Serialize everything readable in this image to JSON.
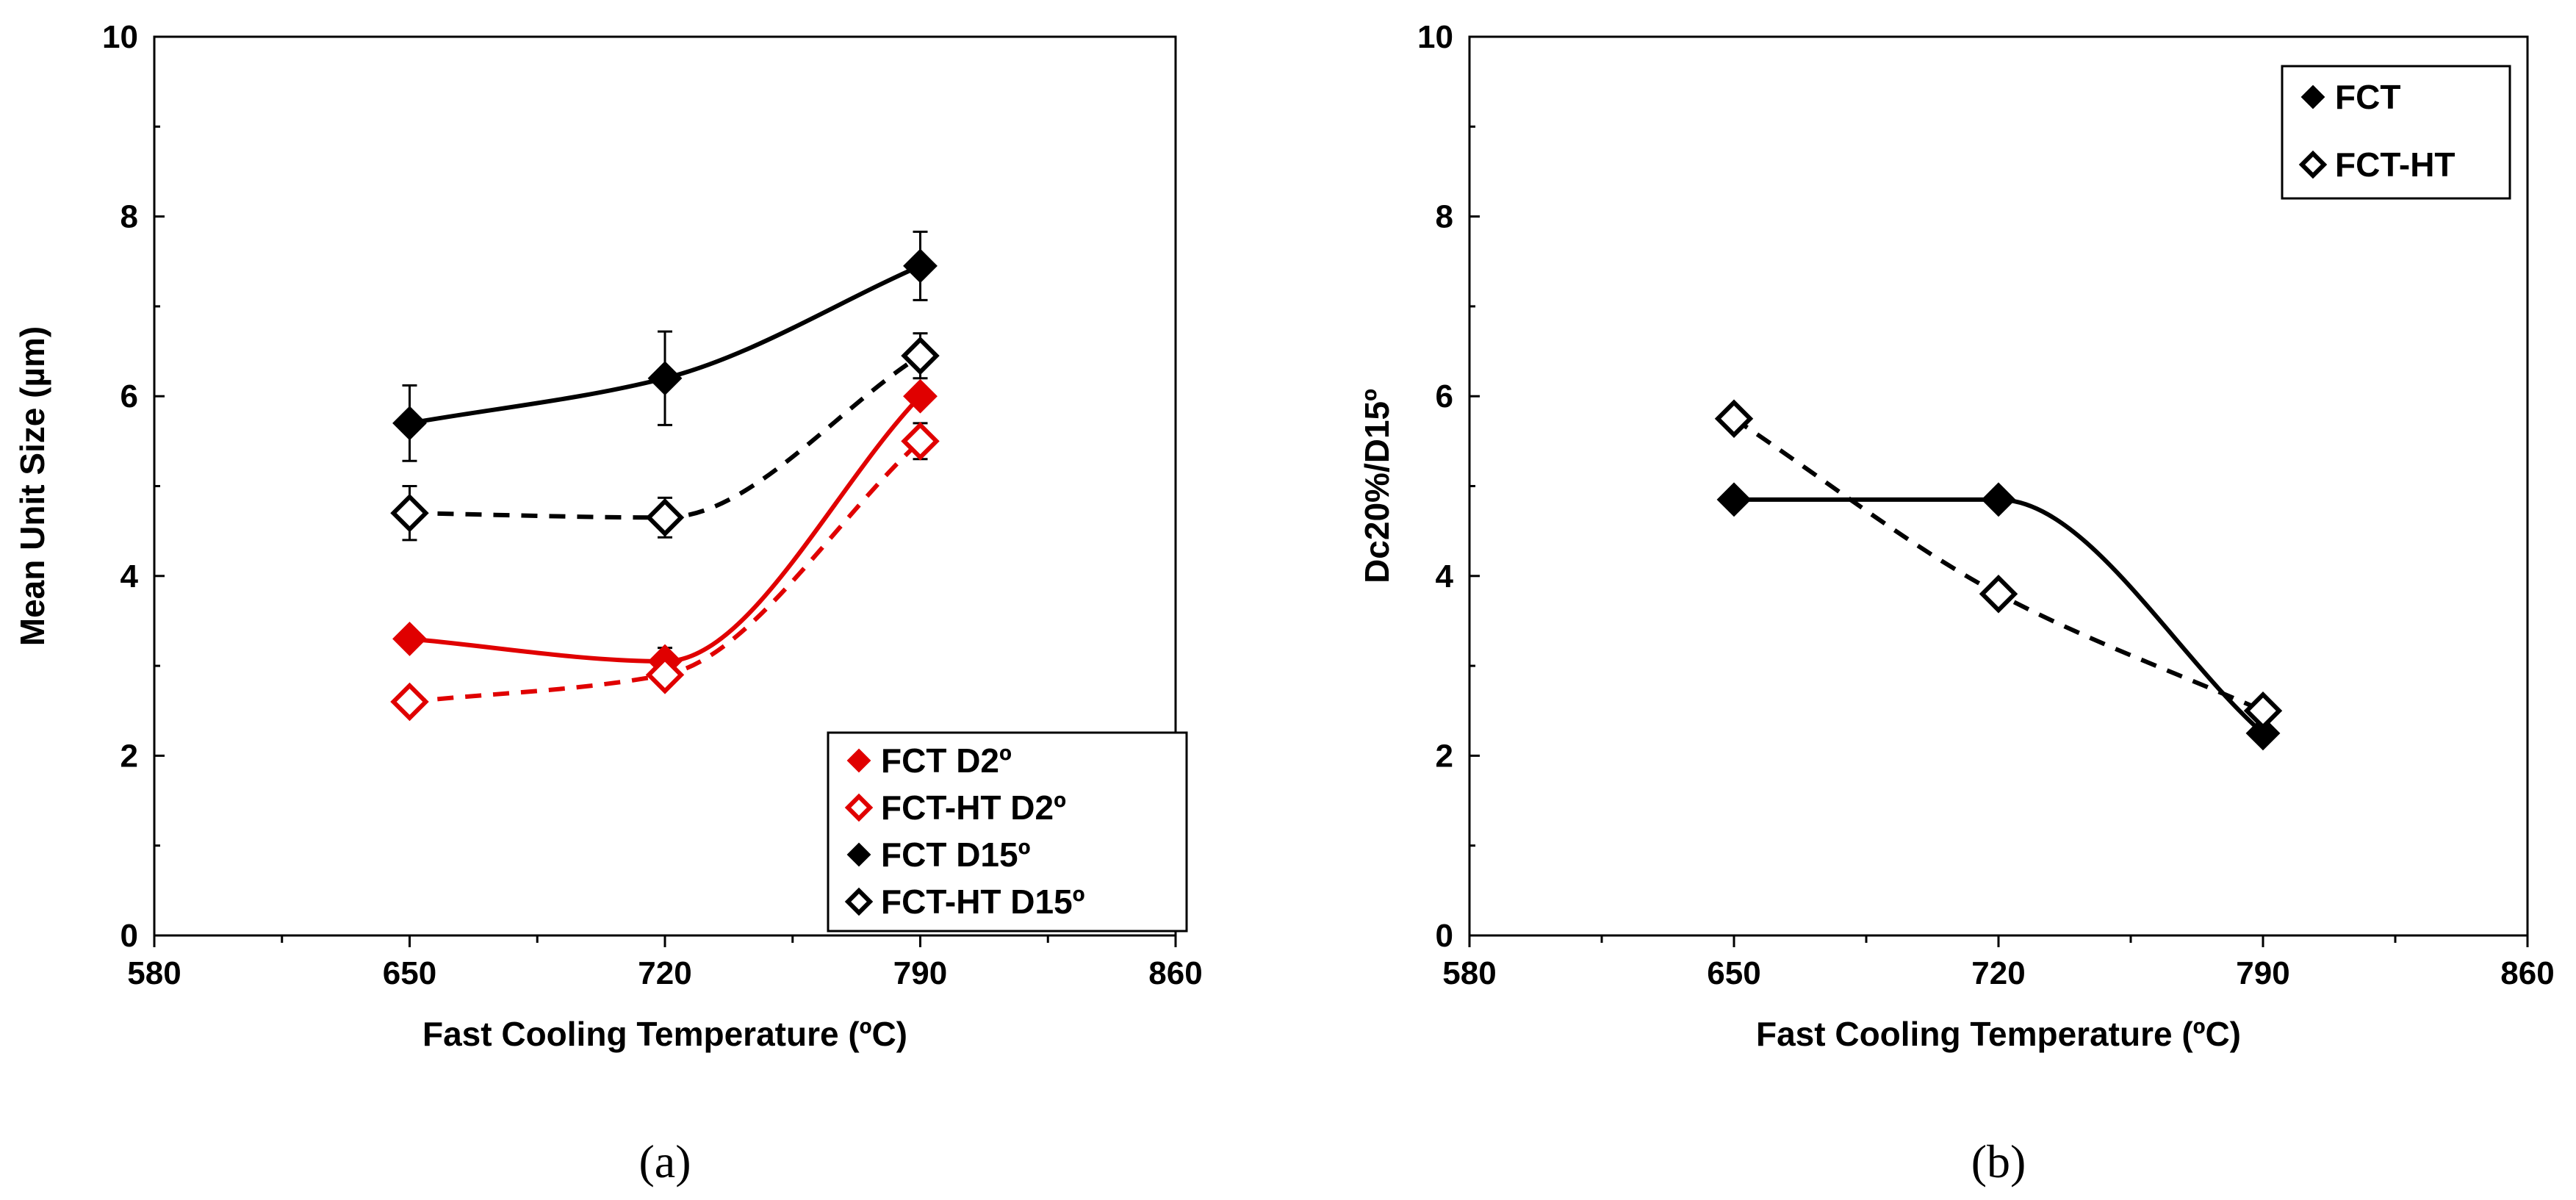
{
  "chart_data": [
    {
      "type": "line",
      "panel_label": "(a)",
      "xlabel": "Fast Cooling Temperature  (ºC)",
      "ylabel": "Mean Unit Size (µm)",
      "xlim": [
        580,
        860
      ],
      "ylim": [
        0,
        10
      ],
      "x_ticks": [
        580,
        650,
        720,
        790,
        860
      ],
      "y_ticks": [
        0,
        2,
        4,
        6,
        8,
        10
      ],
      "grid": false,
      "legend_position": "bottom-right",
      "x": [
        650,
        720,
        790
      ],
      "series": [
        {
          "name": "FCT D2º",
          "values": [
            3.3,
            3.05,
            6.0
          ],
          "errors": [
            0.05,
            0.15,
            0.05
          ],
          "color": "#e00000",
          "marker": "filled-diamond",
          "line": "solid"
        },
        {
          "name": "FCT-HT D2º",
          "values": [
            2.6,
            2.9,
            5.5
          ],
          "errors": [
            0.05,
            0.1,
            0.2
          ],
          "color": "#e00000",
          "marker": "open-diamond",
          "line": "dashed"
        },
        {
          "name": "FCT D15º",
          "values": [
            5.7,
            6.2,
            7.45
          ],
          "errors": [
            0.42,
            0.52,
            0.38
          ],
          "color": "#000000",
          "marker": "filled-diamond",
          "line": "solid"
        },
        {
          "name": "FCT-HT D15º",
          "values": [
            4.7,
            4.65,
            6.45
          ],
          "errors": [
            0.3,
            0.22,
            0.25
          ],
          "color": "#000000",
          "marker": "open-diamond",
          "line": "dashed"
        }
      ]
    },
    {
      "type": "line",
      "panel_label": "(b)",
      "xlabel": "Fast Cooling Temperature  (ºC)",
      "ylabel": "Dc20%/D15º",
      "xlim": [
        580,
        860
      ],
      "ylim": [
        0,
        10
      ],
      "x_ticks": [
        580,
        650,
        720,
        790,
        860
      ],
      "y_ticks": [
        0,
        2,
        4,
        6,
        8,
        10
      ],
      "grid": false,
      "legend_position": "top-right",
      "x": [
        650,
        720,
        790
      ],
      "series": [
        {
          "name": "FCT",
          "values": [
            4.85,
            4.85,
            2.25
          ],
          "color": "#000000",
          "marker": "filled-diamond",
          "line": "solid"
        },
        {
          "name": "FCT-HT",
          "values": [
            5.75,
            3.8,
            2.5
          ],
          "color": "#000000",
          "marker": "open-diamond",
          "line": "dashed"
        }
      ]
    }
  ]
}
